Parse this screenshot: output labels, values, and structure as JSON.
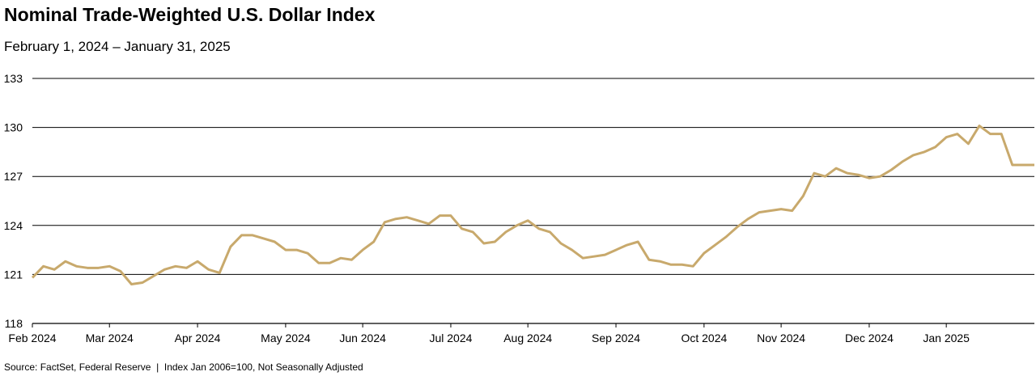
{
  "chart_data": {
    "type": "line",
    "title": "Nominal Trade-Weighted U.S. Dollar Index",
    "subtitle": "February 1, 2024 – January 31, 2025",
    "source": "Source: FactSet, Federal Reserve  |  Index Jan 2006=100, Not Seasonally Adjusted",
    "categories": [
      "Feb 2024",
      null,
      null,
      null,
      null,
      null,
      null,
      "Mar 2024",
      null,
      null,
      null,
      null,
      null,
      null,
      null,
      "Apr 2024",
      null,
      null,
      null,
      null,
      null,
      null,
      null,
      "May 2024",
      null,
      null,
      null,
      null,
      null,
      null,
      "Jun 2024",
      null,
      null,
      null,
      null,
      null,
      null,
      null,
      "Jul 2024",
      null,
      null,
      null,
      null,
      null,
      null,
      "Aug 2024",
      null,
      null,
      null,
      null,
      null,
      null,
      null,
      "Sep 2024",
      null,
      null,
      null,
      null,
      null,
      null,
      null,
      "Oct 2024",
      null,
      null,
      null,
      null,
      null,
      null,
      "Nov 2024",
      null,
      null,
      null,
      null,
      null,
      null,
      null,
      "Dec 2024",
      null,
      null,
      null,
      null,
      null,
      null,
      "Jan 2025",
      null,
      null,
      null,
      null,
      null,
      null,
      null,
      null
    ],
    "values": [
      120.8,
      121.5,
      121.3,
      121.8,
      121.5,
      121.4,
      121.4,
      121.5,
      121.2,
      120.4,
      120.5,
      120.9,
      121.3,
      121.5,
      121.4,
      121.8,
      121.3,
      121.1,
      122.7,
      123.4,
      123.4,
      123.2,
      123.0,
      122.5,
      122.5,
      122.3,
      121.7,
      121.7,
      122.0,
      121.9,
      122.5,
      123.0,
      124.2,
      124.4,
      124.5,
      124.3,
      124.1,
      124.6,
      124.6,
      123.8,
      123.6,
      122.9,
      123.0,
      123.6,
      124.0,
      124.3,
      123.8,
      123.6,
      122.9,
      122.5,
      122.0,
      122.1,
      122.2,
      122.5,
      122.8,
      123.0,
      121.9,
      121.8,
      121.6,
      121.6,
      121.5,
      122.3,
      122.8,
      123.3,
      123.9,
      124.4,
      124.8,
      124.9,
      125.0,
      124.9,
      125.8,
      127.2,
      127.0,
      127.5,
      127.2,
      127.1,
      126.9,
      127.0,
      127.4,
      127.9,
      128.3,
      128.5,
      128.8,
      129.4,
      129.6,
      129.0,
      130.1,
      129.6,
      129.6,
      127.7,
      127.7,
      127.7
    ],
    "color": "#c8a96c",
    "ylim": [
      118,
      133
    ],
    "yticks": [
      118,
      121,
      124,
      127,
      130,
      133
    ],
    "grid": true
  }
}
